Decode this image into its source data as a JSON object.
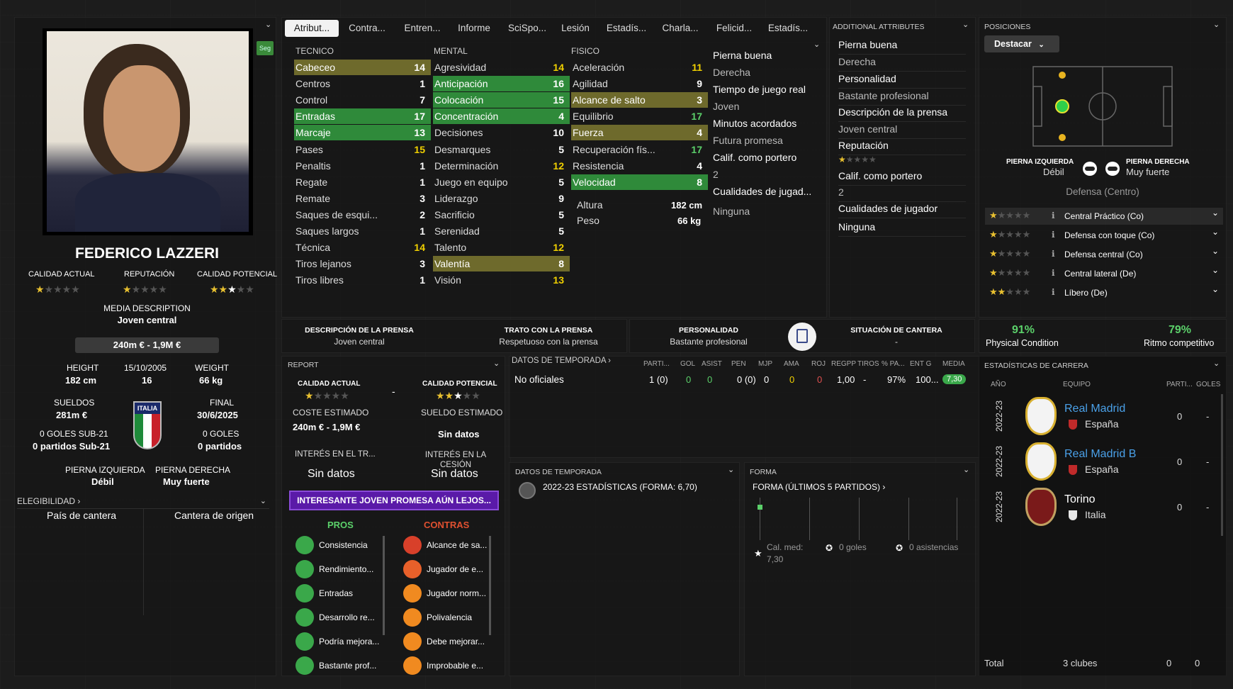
{
  "tabs": [
    "Atribut...",
    "Contra...",
    "Entren...",
    "Informe",
    "SciSpo...",
    "Lesión",
    "Estadís...",
    "Charla...",
    "Felicid...",
    "Estadís..."
  ],
  "player": {
    "name": "FEDERICO LAZZERI",
    "badge": "Seg",
    "calidad_actual_label": "CALIDAD ACTUAL",
    "reputacion_label": "REPUTACIÓN",
    "calidad_potencial_label": "CALIDAD POTENCIAL",
    "media_desc_label": "MEDIA DESCRIPTION",
    "media_desc": "Joven central",
    "value": "240m € - 1,9M €",
    "height_label": "HEIGHT",
    "height": "182 cm",
    "dob": "15/10/2005",
    "age": "16",
    "weight_label": "WEIGHT",
    "weight": "66 kg",
    "sueldos_label": "SUELDOS",
    "sueldos": "281m €",
    "final_label": "FINAL",
    "final": "30/6/2025",
    "flag_text": "ITALIA",
    "goles_sub21": "0 GOLES SUB-21",
    "partidos_sub21": "0 partidos Sub-21",
    "goles": "0 GOLES",
    "partidos": "0 partidos",
    "pierna_izq_label": "PIERNA IZQUIERDA",
    "pierna_izq": "Débil",
    "pierna_der_label": "PIERNA DERECHA",
    "pierna_der": "Muy fuerte",
    "elegibilidad": "ELEGIBILIDAD",
    "pais_cantera": "País de cantera",
    "cantera_origen": "Cantera de origen"
  },
  "tecnico": {
    "label": "TECNICO",
    "items": [
      [
        "Cabeceo",
        "14"
      ],
      [
        "Centros",
        "1"
      ],
      [
        "Control",
        "7"
      ],
      [
        "Entradas",
        "17"
      ],
      [
        "Marcaje",
        "13"
      ],
      [
        "Pases",
        "15"
      ],
      [
        "Penaltis",
        "1"
      ],
      [
        "Regate",
        "1"
      ],
      [
        "Remate",
        "3"
      ],
      [
        "Saques de esqui...",
        "2"
      ],
      [
        "Saques largos",
        "1"
      ],
      [
        "Técnica",
        "14"
      ],
      [
        "Tiros lejanos",
        "3"
      ],
      [
        "Tiros libres",
        "1"
      ]
    ]
  },
  "mental": {
    "label": "MENTAL",
    "items": [
      [
        "Agresividad",
        "14"
      ],
      [
        "Anticipación",
        "16"
      ],
      [
        "Colocación",
        "15"
      ],
      [
        "Concentración",
        "4"
      ],
      [
        "Decisiones",
        "10"
      ],
      [
        "Desmarques",
        "5"
      ],
      [
        "Determinación",
        "12"
      ],
      [
        "Juego en equipo",
        "5"
      ],
      [
        "Liderazgo",
        "9"
      ],
      [
        "Sacrificio",
        "5"
      ],
      [
        "Serenidad",
        "5"
      ],
      [
        "Talento",
        "12"
      ],
      [
        "Valentía",
        "8"
      ],
      [
        "Visión",
        "13"
      ]
    ]
  },
  "fisico": {
    "label": "FISICO",
    "items": [
      [
        "Aceleración",
        "11"
      ],
      [
        "Agilidad",
        "9"
      ],
      [
        "Alcance de salto",
        "3"
      ],
      [
        "Equilibrio",
        "17"
      ],
      [
        "Fuerza",
        "4"
      ],
      [
        "Recuperación fís...",
        "17"
      ],
      [
        "Resistencia",
        "4"
      ],
      [
        "Velocidad",
        "8"
      ]
    ],
    "altura_label": "Altura",
    "altura": "182 cm",
    "peso_label": "Peso",
    "peso": "66 kg"
  },
  "mid_info": [
    "Pierna buena",
    "Derecha",
    "Tiempo de juego real",
    "Joven",
    "Minutos acordados",
    "Futura promesa",
    "Calif. como portero",
    "2",
    "Cualidades de jugad...",
    "Ninguna"
  ],
  "additional": {
    "title": "ADDITIONAL ATTRIBUTES",
    "items": [
      "Pierna buena",
      "Derecha",
      "Personalidad",
      "Bastante profesional",
      "Descripción de la prensa",
      "Joven central",
      "Reputación",
      "Calif. como portero",
      "2",
      "Cualidades de jugador",
      "Ninguna"
    ]
  },
  "posiciones": {
    "title": "POSICIONES",
    "button": "Destacar",
    "pierna_izq_label": "PIERNA IZQUIERDA",
    "pierna_izq": "Débil",
    "pierna_der_label": "PIERNA DERECHA",
    "pierna_der": "Muy fuerte",
    "role": "Defensa (Centro)",
    "rows": [
      "Central Práctico (Co)",
      "Defensa con toque (Co)",
      "Defensa central (Co)",
      "Central lateral (De)",
      "Líbero (De)"
    ]
  },
  "press": {
    "desc_label": "DESCRIPCIÓN DE LA PRENSA",
    "desc": "Joven central",
    "trato_label": "TRATO CON LA PRENSA",
    "trato": "Respetuoso con la prensa",
    "pers_label": "PERSONALIDAD",
    "pers": "Bastante profesional",
    "cantera_label": "SITUACIÓN DE CANTERA",
    "cantera": "-"
  },
  "condition": {
    "phys_pct": "91%",
    "phys_label": "Physical Condition",
    "ritmo_pct": "79%",
    "ritmo_label": "Ritmo competitivo"
  },
  "report": {
    "title": "REPORT",
    "ca_label": "CALIDAD ACTUAL",
    "dash": "-",
    "cp_label": "CALIDAD POTENCIAL",
    "coste_label": "COSTE ESTIMADO",
    "coste": "240m € - 1,9M €",
    "sueldo_label": "SUELDO ESTIMADO",
    "sueldo": "Sin datos",
    "interes_tr_label": "INTERÉS EN EL TR...",
    "interes_tr": "Sin datos",
    "interes_ces_label": "INTERÉS EN LA CESIÓN",
    "interes_ces": "Sin datos",
    "banner": "INTERESANTE JOVEN PROMESA AÚN LEJOS...",
    "pros_label": "PROS",
    "contras_label": "CONTRAS",
    "pros": [
      "Consistencia",
      "Rendimiento...",
      "Entradas",
      "Desarrollo re...",
      "Podría mejora...",
      "Bastante prof..."
    ],
    "contras": [
      "Alcance de sa...",
      "Jugador de e...",
      "Jugador norm...",
      "Polivalencia",
      "Debe mejorar...",
      "Improbable e..."
    ]
  },
  "season": {
    "title": "DATOS DE TEMPORADA",
    "cols": [
      "PARTI...",
      "GOL",
      "ASIST",
      "PEN",
      "MJP",
      "AMA",
      "ROJ",
      "REGPP",
      "TIROS",
      "% PA...",
      "ENT G",
      "MEDIA"
    ],
    "row_label": "No oficiales",
    "row": [
      "1 (0)",
      "0",
      "0",
      "0 (0)",
      "0",
      "0",
      "0",
      "1,00",
      "-",
      "97%",
      "100...",
      "7,30"
    ]
  },
  "season2": {
    "title": "DATOS DE TEMPORADA",
    "line": "2022-23 ESTADÍSTICAS (FORMA: 6,70)"
  },
  "forma": {
    "title": "FORMA",
    "sub": "FORMA (ÚLTIMOS 5 PARTIDOS)",
    "cal": "Cal. med:",
    "cal_val": "7,30",
    "goles": "0 goles",
    "asist": "0 asistencias"
  },
  "career": {
    "title": "ESTADÍSTICAS DE CARRERA",
    "col_year": "AÑO",
    "col_team": "EQUIPO",
    "col_parti": "PARTI...",
    "col_goles": "GOLES",
    "rows": [
      {
        "year": "2022-23",
        "team": "Real Madrid",
        "country": "España",
        "parti": "0",
        "goles": "-"
      },
      {
        "year": "2022-23",
        "team": "Real Madrid B",
        "country": "España",
        "parti": "0",
        "goles": "-"
      },
      {
        "year": "2022-23",
        "team": "Torino",
        "country": "Italia",
        "parti": "0",
        "goles": "-"
      }
    ],
    "total_label": "Total",
    "total_clubs": "3 clubes",
    "total_parti": "0",
    "total_goles": "0"
  }
}
